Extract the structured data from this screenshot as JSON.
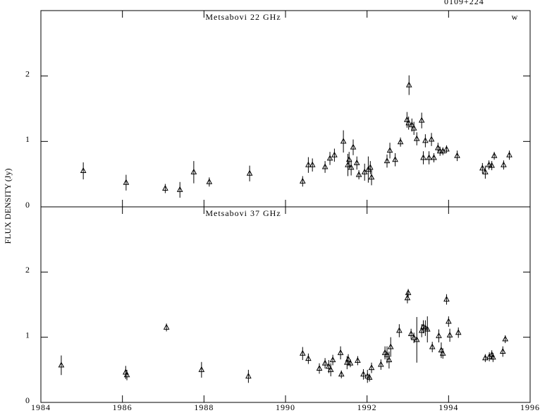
{
  "source": "0109+224",
  "flag": "w",
  "y_label": "FLUX DENSITY (Jy)",
  "chart_data": [
    {
      "type": "scatter",
      "title": "Metsabovi 22 GHz",
      "x": [
        1985.04,
        1986.09,
        1987.05,
        1987.41,
        1987.75,
        1988.13,
        1989.12,
        1990.42,
        1990.56,
        1990.66,
        1990.97,
        1991.09,
        1991.2,
        1991.42,
        1991.53,
        1991.56,
        1991.61,
        1991.66,
        1991.75,
        1991.8,
        1991.94,
        1992.03,
        1992.08,
        1992.11,
        1992.49,
        1992.56,
        1992.69,
        1992.82,
        1992.98,
        1993.02,
        1993.03,
        1993.1,
        1993.15,
        1993.22,
        1993.34,
        1993.38,
        1993.43,
        1993.52,
        1993.58,
        1993.64,
        1993.74,
        1993.79,
        1993.86,
        1993.95,
        1994.21,
        1994.83,
        1994.9,
        1994.99,
        1995.06,
        1995.12,
        1995.35,
        1995.49
      ],
      "values": [
        0.55,
        0.37,
        0.28,
        0.26,
        0.53,
        0.38,
        0.51,
        0.39,
        0.64,
        0.64,
        0.61,
        0.74,
        0.79,
        1.0,
        0.64,
        0.72,
        0.6,
        0.91,
        0.67,
        0.49,
        0.53,
        0.57,
        0.6,
        0.45,
        0.7,
        0.86,
        0.72,
        0.99,
        1.33,
        1.28,
        1.86,
        1.25,
        1.2,
        1.04,
        1.32,
        0.75,
        1.01,
        0.75,
        1.03,
        0.75,
        0.9,
        0.85,
        0.85,
        0.88,
        0.78,
        0.59,
        0.53,
        0.64,
        0.63,
        0.78,
        0.64,
        0.79
      ],
      "errors": [
        0.13,
        0.12,
        0.07,
        0.12,
        0.17,
        0.07,
        0.12,
        0.08,
        0.12,
        0.1,
        0.09,
        0.1,
        0.1,
        0.17,
        0.17,
        0.12,
        0.12,
        0.12,
        0.1,
        0.07,
        0.13,
        0.2,
        0.1,
        0.12,
        0.1,
        0.12,
        0.1,
        0.07,
        0.12,
        0.1,
        0.15,
        0.1,
        0.1,
        0.1,
        0.12,
        0.1,
        0.1,
        0.1,
        0.1,
        0.07,
        0.08,
        0.07,
        0.06,
        0.06,
        0.08,
        0.08,
        0.1,
        0.07,
        0.07,
        0.06,
        0.07,
        0.07
      ],
      "xlim": [
        1984,
        1996
      ],
      "xticks": [
        1984,
        1986,
        1988,
        1990,
        1992,
        1994,
        1996
      ],
      "ylim": [
        0,
        3
      ],
      "yticks": [
        0,
        1,
        2
      ]
    },
    {
      "type": "scatter",
      "title": "Metsabovi 37 GHz",
      "x": [
        1984.5,
        1986.08,
        1986.11,
        1987.08,
        1987.94,
        1989.09,
        1990.42,
        1990.56,
        1990.83,
        1990.97,
        1991.06,
        1991.11,
        1991.16,
        1991.35,
        1991.37,
        1991.51,
        1991.54,
        1991.59,
        1991.77,
        1991.91,
        1992.01,
        1992.06,
        1992.11,
        1992.34,
        1992.44,
        1992.49,
        1992.54,
        1992.58,
        1992.79,
        1992.99,
        1993.01,
        1993.08,
        1993.15,
        1993.22,
        1993.34,
        1993.38,
        1993.43,
        1993.48,
        1993.6,
        1993.76,
        1993.82,
        1993.86,
        1993.95,
        1994.0,
        1994.03,
        1994.24,
        1994.9,
        1995.0,
        1995.06,
        1995.09,
        1995.33,
        1995.39
      ],
      "values": [
        0.57,
        0.46,
        0.42,
        1.15,
        0.5,
        0.4,
        0.75,
        0.67,
        0.52,
        0.6,
        0.55,
        0.5,
        0.65,
        0.76,
        0.43,
        0.61,
        0.66,
        0.6,
        0.64,
        0.43,
        0.4,
        0.38,
        0.53,
        0.58,
        0.76,
        0.73,
        0.65,
        0.85,
        1.1,
        1.6,
        1.68,
        1.05,
        0.99,
        0.96,
        1.1,
        1.16,
        1.14,
        1.12,
        0.85,
        1.02,
        0.8,
        0.75,
        1.58,
        1.24,
        1.03,
        1.07,
        0.68,
        0.7,
        0.73,
        0.69,
        0.78,
        0.97
      ],
      "errors": [
        0.15,
        0.1,
        0.08,
        0.06,
        0.12,
        0.1,
        0.1,
        0.08,
        0.08,
        0.08,
        0.1,
        0.1,
        0.08,
        0.1,
        0.06,
        0.1,
        0.08,
        0.06,
        0.07,
        0.08,
        0.1,
        0.06,
        0.08,
        0.08,
        0.1,
        0.13,
        0.13,
        0.15,
        0.1,
        0.08,
        0.06,
        0.08,
        0.08,
        0.35,
        0.1,
        0.1,
        0.12,
        0.2,
        0.08,
        0.1,
        0.12,
        0.08,
        0.08,
        0.08,
        0.1,
        0.08,
        0.06,
        0.07,
        0.07,
        0.07,
        0.08,
        0.06
      ],
      "xlim": [
        1984,
        1996
      ],
      "xticks": [
        1984,
        1986,
        1988,
        1990,
        1992,
        1994,
        1996
      ],
      "ylim": [
        0,
        3
      ],
      "yticks": [
        0,
        1,
        2
      ]
    }
  ]
}
